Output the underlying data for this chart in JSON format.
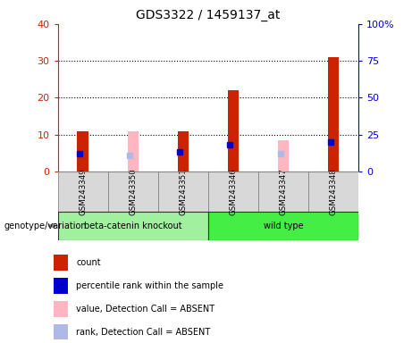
{
  "title": "GDS3322 / 1459137_at",
  "categories": [
    "GSM243349",
    "GSM243350",
    "GSM243351",
    "GSM243346",
    "GSM243347",
    "GSM243348"
  ],
  "groups": [
    "beta-catenin knockout",
    "beta-catenin knockout",
    "beta-catenin knockout",
    "wild type",
    "wild type",
    "wild type"
  ],
  "group_colors": {
    "beta-catenin knockout": "#a0f0a0",
    "wild type": "#44ee44"
  },
  "red_bars": [
    11,
    0,
    11,
    22,
    0,
    31
  ],
  "pink_bars": [
    0,
    11,
    0,
    0,
    8.5,
    0
  ],
  "blue_squares": [
    12,
    0,
    13.5,
    18,
    0,
    20
  ],
  "lavender_squares": [
    0,
    11,
    0,
    0,
    12,
    0
  ],
  "left_ylim": [
    0,
    40
  ],
  "right_ylim": [
    0,
    100
  ],
  "left_yticks": [
    0,
    10,
    20,
    30,
    40
  ],
  "right_yticks": [
    0,
    25,
    50,
    75,
    100
  ],
  "right_yticklabels": [
    "0",
    "25",
    "50",
    "75",
    "100%"
  ],
  "left_color": "#cc2200",
  "right_color": "#0000cc",
  "legend_labels": [
    "count",
    "percentile rank within the sample",
    "value, Detection Call = ABSENT",
    "rank, Detection Call = ABSENT"
  ],
  "legend_colors": [
    "#cc2200",
    "#0000cc",
    "#ffb6c1",
    "#b0b8e8"
  ],
  "genotype_label": "genotype/variation"
}
